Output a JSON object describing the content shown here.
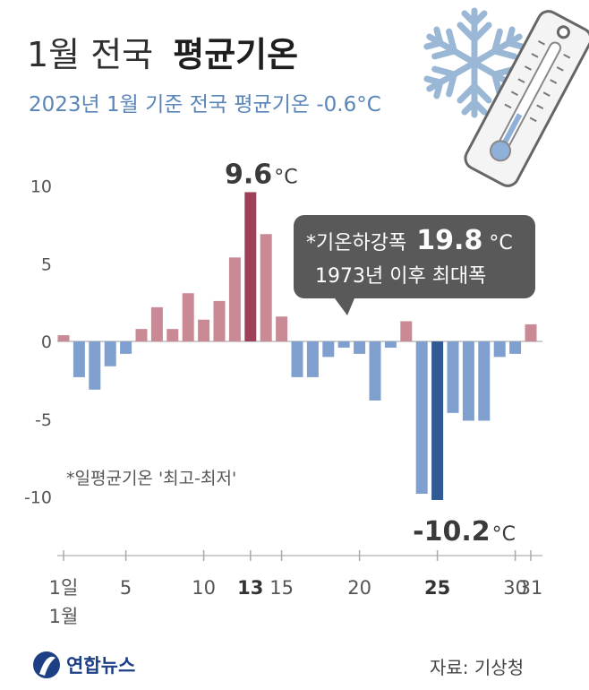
{
  "header": {
    "title_light": "1월 전국",
    "title_bold": "평균기온",
    "subtitle": "2023년 1월 기준 전국 평균기온 -0.6°C"
  },
  "chart_data": {
    "type": "bar",
    "x": [
      1,
      2,
      3,
      4,
      5,
      6,
      7,
      8,
      9,
      10,
      11,
      12,
      13,
      14,
      15,
      16,
      17,
      18,
      19,
      20,
      21,
      22,
      23,
      24,
      25,
      26,
      27,
      28,
      29,
      30,
      31
    ],
    "values": [
      0.4,
      -2.3,
      -3.1,
      -1.6,
      -0.8,
      0.8,
      2.2,
      0.8,
      3.1,
      1.4,
      2.6,
      5.4,
      9.6,
      6.9,
      1.6,
      -2.3,
      -2.3,
      -1.0,
      -0.4,
      -0.8,
      -3.8,
      -0.4,
      1.3,
      -9.8,
      -10.2,
      -4.6,
      -5.1,
      -5.1,
      -1.0,
      -0.8,
      1.1
    ],
    "ylim": [
      -12,
      11
    ],
    "y_ticks": [
      10,
      5,
      0,
      -5,
      -10
    ],
    "x_tick_labels": [
      {
        "day": 1,
        "label": "1일"
      },
      {
        "day": 5,
        "label": "5"
      },
      {
        "day": 10,
        "label": "10"
      },
      {
        "day": 13,
        "label": "13",
        "bold": true
      },
      {
        "day": 15,
        "label": "15"
      },
      {
        "day": 20,
        "label": "20"
      },
      {
        "day": 25,
        "label": "25",
        "bold": true
      },
      {
        "day": 30,
        "label": "30"
      },
      {
        "day": 31,
        "label": "31"
      }
    ],
    "month_label": "1월",
    "max_label": {
      "value": "9.6",
      "unit": "°C"
    },
    "min_label": {
      "value": "-10.2",
      "unit": "°C"
    },
    "highlight_days": [
      13,
      25
    ],
    "colors": {
      "positive": "#c98a96",
      "positive_highlight": "#9e4057",
      "negative": "#7f9fcf",
      "negative_highlight": "#2f5a93",
      "axis": "#bdbdbd"
    },
    "grid": false
  },
  "callout": {
    "line1_prefix": "*기온하강폭",
    "line1_value": "19.8",
    "line1_unit": "°C",
    "line2": "1973년 이후 최대폭"
  },
  "note": "*일평균기온 '최고-최저'",
  "footer": {
    "logo_text": "연합뉴스",
    "source": "자료: 기상청"
  },
  "icons": [
    "snowflake-icon",
    "thermometer-icon",
    "logo-icon"
  ]
}
